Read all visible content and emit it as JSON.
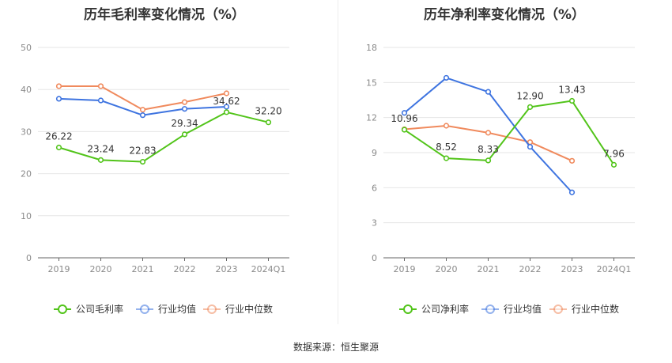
{
  "source": "数据来源：恒生聚源",
  "colors": {
    "company": "#52c41a",
    "avg": "#3e74e0",
    "median": "#f08a5d",
    "grid": "#e6e6e6",
    "axis": "#666666"
  },
  "chart_data": [
    {
      "type": "line",
      "title": "历年毛利率变化情况（%）",
      "categories": [
        "2019",
        "2020",
        "2021",
        "2022",
        "2023",
        "2024Q1"
      ],
      "ylim": [
        0,
        50
      ],
      "yticks": [
        0,
        10,
        20,
        30,
        40,
        50
      ],
      "grid": true,
      "legend_position": "bottom",
      "series": [
        {
          "name": "公司毛利率",
          "key": "company",
          "values": [
            26.22,
            23.24,
            22.83,
            29.34,
            34.62,
            32.2
          ],
          "labels": [
            "26.22",
            "23.24",
            "22.83",
            "29.34",
            "34.62",
            "32.20"
          ]
        },
        {
          "name": "行业均值",
          "key": "avg",
          "values": [
            37.8,
            37.4,
            33.9,
            35.4,
            35.9,
            null
          ]
        },
        {
          "name": "行业中位数",
          "key": "median",
          "values": [
            40.8,
            40.8,
            35.2,
            37.0,
            39.1,
            null
          ]
        }
      ]
    },
    {
      "type": "line",
      "title": "历年净利率变化情况（%）",
      "categories": [
        "2019",
        "2020",
        "2021",
        "2022",
        "2023",
        "2024Q1"
      ],
      "ylim": [
        0,
        18
      ],
      "yticks": [
        0,
        3,
        6,
        9,
        12,
        15,
        18
      ],
      "grid": true,
      "legend_position": "bottom",
      "series": [
        {
          "name": "公司净利率",
          "key": "company",
          "values": [
            10.96,
            8.52,
            8.33,
            12.9,
            13.43,
            7.96
          ],
          "labels": [
            "10.96",
            "8.52",
            "8.33",
            "12.90",
            "13.43",
            "7.96"
          ]
        },
        {
          "name": "行业均值",
          "key": "avg",
          "values": [
            12.4,
            15.4,
            14.2,
            9.5,
            5.6,
            null
          ]
        },
        {
          "name": "行业中位数",
          "key": "median",
          "values": [
            11.0,
            11.3,
            10.7,
            9.9,
            8.3,
            null
          ]
        }
      ]
    }
  ]
}
